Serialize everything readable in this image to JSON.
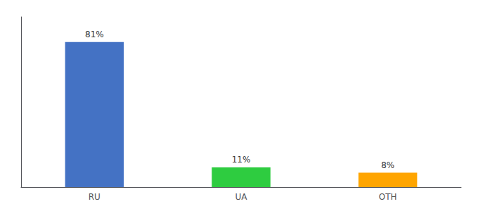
{
  "chart_data": {
    "type": "bar",
    "categories": [
      "RU",
      "UA",
      "OTH"
    ],
    "values": [
      81,
      11,
      8
    ],
    "value_labels": [
      "81%",
      "11%",
      "8%"
    ],
    "colors": [
      "#4472C4",
      "#2ECC40",
      "#FFA500"
    ],
    "ylim": [
      0,
      95
    ],
    "grid": false,
    "data_labels": true,
    "tick_labels": "x"
  }
}
